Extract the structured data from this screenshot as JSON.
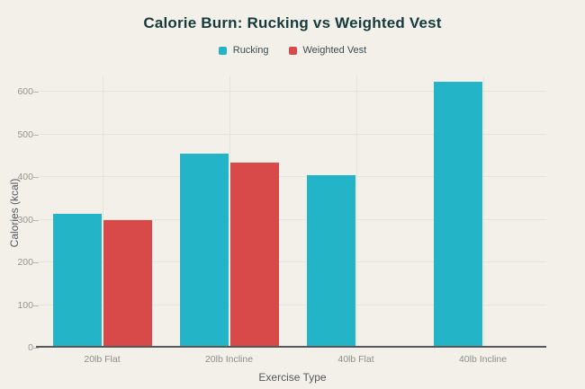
{
  "title": "Calorie Burn: Rucking vs Weighted Vest",
  "chart_data": {
    "type": "bar",
    "title": "Calorie Burn: Rucking vs Weighted Vest",
    "categories": [
      "20lb Flat",
      "20lb Incline",
      "40lb Flat",
      "40lb Incline"
    ],
    "series": [
      {
        "name": "Rucking",
        "color": "#24b4c8",
        "values": [
          310,
          450,
          400,
          620
        ]
      },
      {
        "name": "Weighted Vest",
        "color": "#d84a4a",
        "values": [
          295,
          430,
          null,
          null
        ]
      }
    ],
    "xlabel": "Exercise Type",
    "ylabel": "Calories (kcal)",
    "yticks": [
      0,
      100,
      200,
      300,
      400,
      500,
      600
    ],
    "ylim": [
      0,
      636
    ],
    "grid": true,
    "legend_position": "top"
  },
  "colors": {
    "background": "#f2f0e9",
    "rucking": "#24b4c8",
    "weighted_vest": "#d84a4a",
    "gridline": "#e5e3da",
    "axis_line": "#55565a",
    "title_text": "#16393b",
    "tick_text": "#95968f"
  }
}
